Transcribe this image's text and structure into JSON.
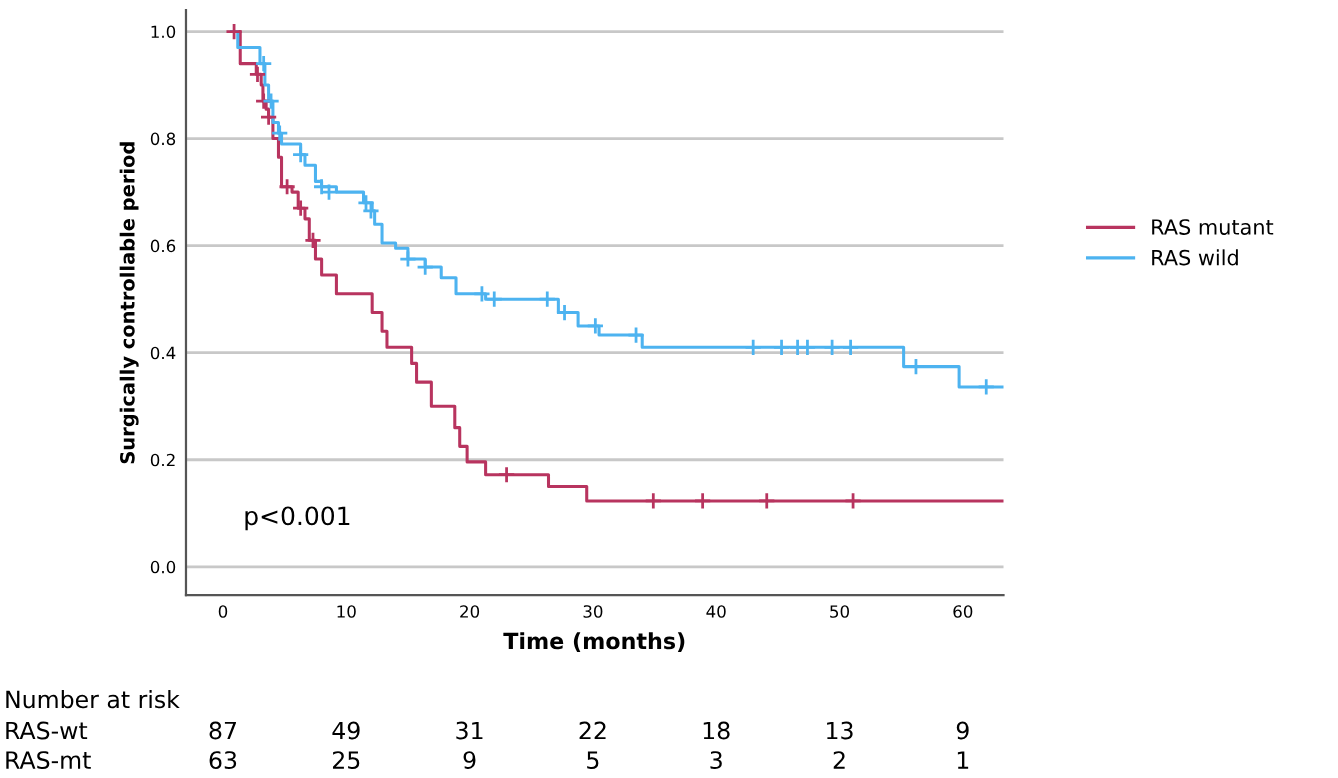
{
  "chart_data": {
    "type": "step",
    "xlabel": "Time (months)",
    "ylabel": "Surgically controllable period",
    "xlim": [
      -3,
      63.3
    ],
    "ylim": [
      -0.053,
      1.04
    ],
    "xticks": [
      0,
      10,
      20,
      30,
      40,
      50,
      60
    ],
    "yticks": [
      {
        "value": 0,
        "label": "0.0"
      },
      {
        "value": 0.2,
        "label": "0.2"
      },
      {
        "value": 0.4,
        "label": "0.4"
      },
      {
        "value": 0.6,
        "label": "0.6"
      },
      {
        "value": 0.8,
        "label": "0.8"
      },
      {
        "value": 1,
        "label": "1.0"
      }
    ],
    "grid": "y",
    "legend": "right",
    "line_style": "solid",
    "series": [
      {
        "name": "RAS mutant",
        "color": "#b8345f",
        "x": [
          0.7,
          1.4,
          2.7,
          3.1,
          3.24,
          3.5,
          3.7,
          4.05,
          4.5,
          4.75,
          5.6,
          6.1,
          6.65,
          7.0,
          7.5,
          8.0,
          9.2,
          12.1,
          12.9,
          13.3,
          15.3,
          15.7,
          16.9,
          18.8,
          19.2,
          19.8,
          21.3,
          26.4,
          29.5,
          63.3
        ],
        "values": [
          1.0,
          0.94,
          0.92,
          0.9,
          0.87,
          0.855,
          0.84,
          0.8,
          0.765,
          0.71,
          0.7,
          0.67,
          0.65,
          0.61,
          0.575,
          0.545,
          0.51,
          0.475,
          0.44,
          0.41,
          0.38,
          0.345,
          0.3,
          0.26,
          0.225,
          0.196,
          0.172,
          0.15,
          0.123,
          0.123
        ]
      },
      {
        "name": "RAS wild",
        "color": "#4db3f0",
        "x": [
          0.7,
          1.2,
          3.0,
          3.4,
          3.7,
          4.05,
          4.5,
          4.75,
          6.3,
          6.65,
          7.5,
          8.0,
          9.2,
          11.4,
          12.1,
          12.3,
          12.9,
          14.0,
          15.0,
          16.4,
          17.7,
          18.9,
          21.3,
          22.4,
          27.2,
          28.8,
          30.5,
          34.0,
          55.2,
          59.7,
          63.3
        ],
        "values": [
          1.0,
          0.97,
          0.94,
          0.9,
          0.87,
          0.83,
          0.81,
          0.79,
          0.77,
          0.75,
          0.72,
          0.71,
          0.7,
          0.68,
          0.665,
          0.64,
          0.605,
          0.595,
          0.575,
          0.56,
          0.54,
          0.51,
          0.5,
          0.5,
          0.475,
          0.45,
          0.433,
          0.41,
          0.374,
          0.336,
          0.336
        ]
      },
      {
        "type": "scatter",
        "marker": "cross",
        "color": "#b8345f",
        "x": [
          0.9,
          2.8,
          3.3,
          3.7,
          5.2,
          6.3,
          7.3,
          23.0,
          34.9,
          38.9,
          44.1,
          51.1
        ],
        "values": [
          1.0,
          0.92,
          0.87,
          0.84,
          0.71,
          0.67,
          0.61,
          0.172,
          0.123,
          0.123,
          0.123,
          0.123
        ]
      },
      {
        "type": "scatter",
        "marker": "cross",
        "color": "#4db3f0",
        "x": [
          3.3,
          3.9,
          4.6,
          6.3,
          8.0,
          8.6,
          11.6,
          12.0,
          15.0,
          16.4,
          21.0,
          22.0,
          26.3,
          27.7,
          30.2,
          33.5,
          43.0,
          45.3,
          46.6,
          47.4,
          49.4,
          50.9,
          56.2,
          61.9
        ],
        "values": [
          0.94,
          0.87,
          0.81,
          0.77,
          0.71,
          0.7,
          0.68,
          0.665,
          0.575,
          0.56,
          0.51,
          0.5,
          0.5,
          0.475,
          0.45,
          0.433,
          0.41,
          0.41,
          0.41,
          0.41,
          0.41,
          0.41,
          0.374,
          0.336
        ]
      }
    ],
    "annotations": [
      "p<0.001",
      "Number at risk",
      "RAS-wt",
      "87",
      "49",
      "31",
      "22",
      "18",
      "13",
      "9",
      "RAS-mt",
      "63",
      "25",
      "9",
      "5",
      "3",
      "2",
      "1"
    ]
  }
}
